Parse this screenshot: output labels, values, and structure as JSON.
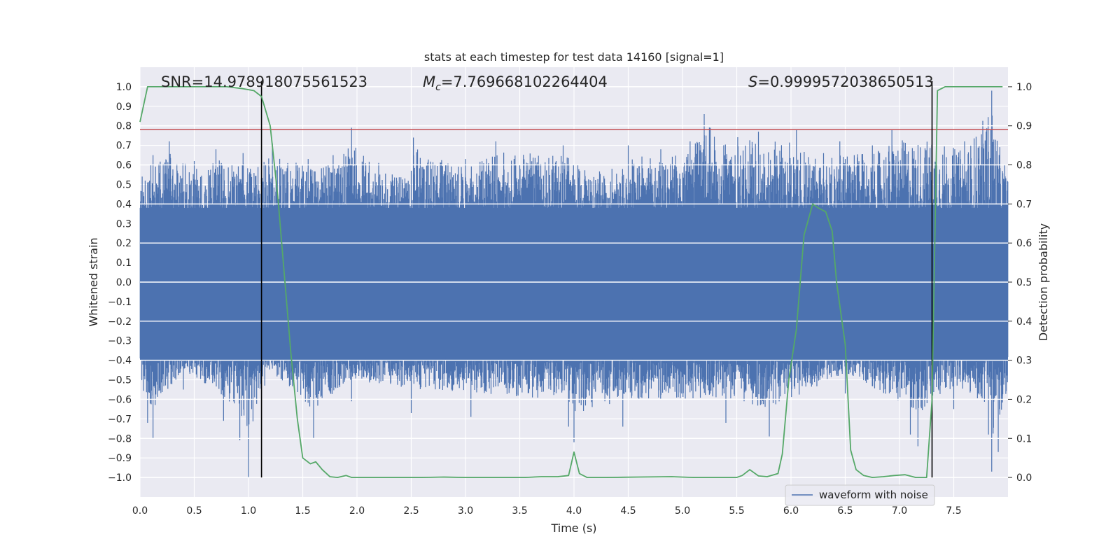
{
  "chart_data": {
    "type": "line",
    "title": "stats at each timestep for test data 14160 [signal=1]",
    "xlabel": "Time (s)",
    "ylabel": "Whitened strain",
    "y2label": "Detection probability",
    "xlim": [
      0,
      8
    ],
    "ylim": [
      -1.1,
      1.1
    ],
    "y2lim": [
      -0.05,
      1.05
    ],
    "xticks": [
      0.0,
      0.5,
      1.0,
      1.5,
      2.0,
      2.5,
      3.0,
      3.5,
      4.0,
      4.5,
      5.0,
      5.5,
      6.0,
      6.5,
      7.0,
      7.5
    ],
    "xtick_labels": [
      "0.0",
      "0.5",
      "1.0",
      "1.5",
      "2.0",
      "2.5",
      "3.0",
      "3.5",
      "4.0",
      "4.5",
      "5.0",
      "5.5",
      "6.0",
      "6.5",
      "7.0",
      "7.5"
    ],
    "yticks": [
      1.0,
      0.9,
      0.8,
      0.7,
      0.6,
      0.5,
      0.4,
      0.3,
      0.2,
      0.1,
      0.0,
      -0.1,
      -0.2,
      -0.3,
      -0.4,
      -0.5,
      -0.6,
      -0.7,
      -0.8,
      -0.9,
      -1.0
    ],
    "ytick_labels": [
      "1.0",
      "0.9",
      "0.8",
      "0.7",
      "0.6",
      "0.5",
      "0.4",
      "0.3",
      "0.2",
      "0.1",
      "0.0",
      "−0.1",
      "−0.2",
      "−0.3",
      "−0.4",
      "−0.5",
      "−0.6",
      "−0.7",
      "−0.8",
      "−0.9",
      "−1.0"
    ],
    "y2ticks": [
      1.0,
      0.9,
      0.8,
      0.7,
      0.6,
      0.5,
      0.4,
      0.3,
      0.2,
      0.1,
      0.0
    ],
    "y2tick_labels": [
      "1.0",
      "0.9",
      "0.8",
      "0.7",
      "0.6",
      "0.5",
      "0.4",
      "0.3",
      "0.2",
      "0.1",
      "0.0"
    ],
    "annotations": {
      "snr": "SNR=14.978918075561523",
      "mc_symbol": "M",
      "mc_sub": "c",
      "mc_value": "=7.769668102264404",
      "s_symbol": "S",
      "s_value": "=0.9999572038650513"
    },
    "legend": {
      "label": "waveform with noise",
      "position": "lower-right"
    },
    "threshold": {
      "value": 0.78,
      "axis": "left",
      "color": "#c44e52"
    },
    "vlines": [
      1.12,
      7.3
    ],
    "vline_range": [
      -1.0,
      1.0
    ],
    "series": [
      {
        "name": "waveform with noise",
        "type": "noise-envelope",
        "color": "#4c72b0",
        "core_top": 0.38,
        "core_bottom": -0.4,
        "seed": 14160,
        "envelope": [
          {
            "x": 0.02,
            "y": 0.54
          },
          {
            "x": 0.1,
            "y": 0.6
          },
          {
            "x": 0.12,
            "y": 0.65
          },
          {
            "x": 0.27,
            "y": 0.72
          },
          {
            "x": 0.5,
            "y": 0.62
          },
          {
            "x": 0.7,
            "y": 0.68
          },
          {
            "x": 0.95,
            "y": 0.66
          },
          {
            "x": 1.12,
            "y": 0.65
          },
          {
            "x": 1.22,
            "y": 0.71
          },
          {
            "x": 1.55,
            "y": 0.63
          },
          {
            "x": 1.78,
            "y": 0.65
          },
          {
            "x": 1.95,
            "y": 0.79
          },
          {
            "x": 2.2,
            "y": 0.61
          },
          {
            "x": 2.5,
            "y": 0.57
          },
          {
            "x": 2.52,
            "y": 0.74
          },
          {
            "x": 3.0,
            "y": 0.63
          },
          {
            "x": 3.28,
            "y": 0.72
          },
          {
            "x": 3.9,
            "y": 0.7
          },
          {
            "x": 4.35,
            "y": 0.58
          },
          {
            "x": 4.5,
            "y": 0.7
          },
          {
            "x": 4.8,
            "y": 0.68
          },
          {
            "x": 5.07,
            "y": 0.72
          },
          {
            "x": 5.2,
            "y": 0.86
          },
          {
            "x": 5.7,
            "y": 0.77
          },
          {
            "x": 6.05,
            "y": 0.78
          },
          {
            "x": 6.3,
            "y": 0.66
          },
          {
            "x": 6.45,
            "y": 0.72
          },
          {
            "x": 6.75,
            "y": 0.7
          },
          {
            "x": 6.93,
            "y": 0.78
          },
          {
            "x": 7.3,
            "y": 0.79
          },
          {
            "x": 7.6,
            "y": 0.72
          },
          {
            "x": 7.85,
            "y": 0.98
          },
          {
            "x": 7.97,
            "y": 0.6
          }
        ],
        "troughs": [
          {
            "x": 0.07,
            "y": -0.72
          },
          {
            "x": 0.12,
            "y": -0.8
          },
          {
            "x": 0.4,
            "y": -0.55
          },
          {
            "x": 0.77,
            "y": -0.71
          },
          {
            "x": 0.92,
            "y": -0.81
          },
          {
            "x": 1.0,
            "y": -1.0
          },
          {
            "x": 1.15,
            "y": -0.53
          },
          {
            "x": 1.6,
            "y": -0.8
          },
          {
            "x": 1.95,
            "y": -0.61
          },
          {
            "x": 2.5,
            "y": -0.67
          },
          {
            "x": 3.05,
            "y": -0.69
          },
          {
            "x": 3.95,
            "y": -0.74
          },
          {
            "x": 4.0,
            "y": -0.82
          },
          {
            "x": 4.45,
            "y": -0.74
          },
          {
            "x": 5.4,
            "y": -0.72
          },
          {
            "x": 5.8,
            "y": -0.79
          },
          {
            "x": 6.5,
            "y": -0.57
          },
          {
            "x": 7.1,
            "y": -0.78
          },
          {
            "x": 7.17,
            "y": -0.84
          },
          {
            "x": 7.5,
            "y": -0.65
          },
          {
            "x": 7.82,
            "y": -0.78
          },
          {
            "x": 7.85,
            "y": -0.97
          },
          {
            "x": 7.91,
            "y": -0.87
          }
        ]
      },
      {
        "name": "detection probability",
        "axis": "right",
        "color": "#55a868",
        "x": [
          0.0,
          0.07,
          0.2,
          0.4,
          0.6,
          0.8,
          0.95,
          1.05,
          1.12,
          1.2,
          1.27,
          1.33,
          1.39,
          1.45,
          1.5,
          1.57,
          1.62,
          1.68,
          1.75,
          1.82,
          1.9,
          1.95,
          2.05,
          2.3,
          2.6,
          2.8,
          3.0,
          3.3,
          3.55,
          3.7,
          3.85,
          3.95,
          4.0,
          4.05,
          4.12,
          4.3,
          4.6,
          4.9,
          5.1,
          5.3,
          5.5,
          5.55,
          5.62,
          5.7,
          5.78,
          5.88,
          5.92,
          5.98,
          6.05,
          6.12,
          6.2,
          6.25,
          6.32,
          6.38,
          6.42,
          6.5,
          6.55,
          6.6,
          6.67,
          6.75,
          6.85,
          6.95,
          7.05,
          7.15,
          7.25,
          7.3,
          7.35,
          7.42,
          7.5,
          7.75,
          7.95
        ],
        "y": [
          0.91,
          1.0,
          1.0,
          1.0,
          1.0,
          1.0,
          0.995,
          0.99,
          0.975,
          0.9,
          0.72,
          0.52,
          0.32,
          0.15,
          0.05,
          0.035,
          0.04,
          0.02,
          0.002,
          0.0,
          0.005,
          0.0,
          0.0,
          0.0,
          0.0,
          0.001,
          0.0,
          0.0,
          0.0,
          0.002,
          0.002,
          0.005,
          0.065,
          0.01,
          0.0,
          0.0,
          0.001,
          0.002,
          0.0,
          0.0,
          0.0,
          0.005,
          0.02,
          0.004,
          0.002,
          0.01,
          0.06,
          0.25,
          0.38,
          0.62,
          0.7,
          0.69,
          0.68,
          0.63,
          0.5,
          0.34,
          0.07,
          0.02,
          0.005,
          0.0,
          0.002,
          0.005,
          0.007,
          0.0,
          0.0,
          0.2,
          0.99,
          1.0,
          1.0,
          1.0,
          1.0
        ]
      }
    ]
  }
}
